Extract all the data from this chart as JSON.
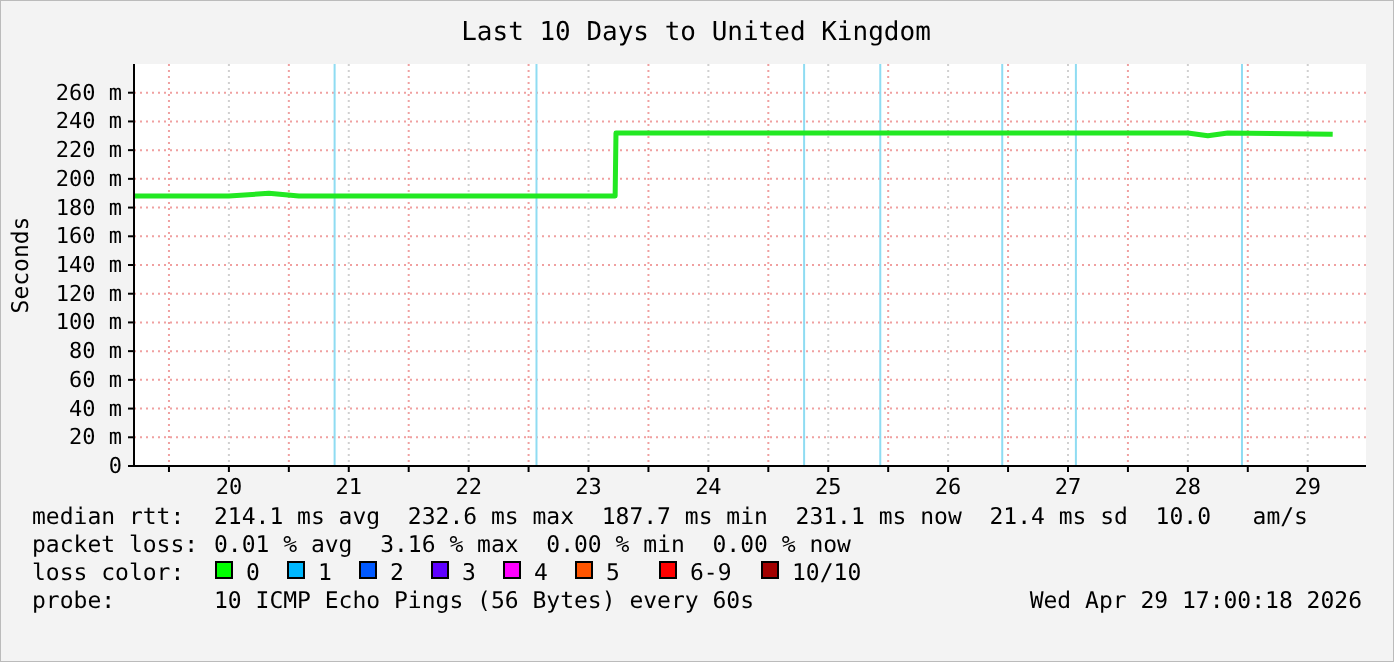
{
  "chart_data": {
    "type": "line",
    "title": "Last 10 Days to United Kingdom",
    "ylabel": "Seconds",
    "x": [
      "2026-04-19T17:00",
      "2026-04-20T12:00",
      "2026-04-20T20:00",
      "2026-04-21T02:00",
      "2026-04-21T12:00",
      "2026-04-22T12:00",
      "2026-04-23T12:00",
      "2026-04-23T17:20",
      "2026-04-23T17:30",
      "2026-04-24T12:00",
      "2026-04-25T12:00",
      "2026-04-26T12:00",
      "2026-04-27T12:00",
      "2026-04-28T12:00",
      "2026-04-28T16:00",
      "2026-04-28T20:00",
      "2026-04-29T17:00"
    ],
    "series": [
      {
        "color": "#22e822",
        "values": [
          188,
          188,
          190,
          188,
          188,
          188,
          188,
          188,
          232,
          232,
          232,
          232,
          232,
          232,
          230,
          232,
          231
        ]
      }
    ],
    "xlim": [
      "2026-04-19T17:00",
      "2026-04-29T23:40"
    ],
    "xticks": [
      {
        "value": "2026-04-20T00:00",
        "label": null
      },
      {
        "value": "2026-04-20T12:00",
        "label": "20"
      },
      {
        "value": "2026-04-21T00:00",
        "label": null
      },
      {
        "value": "2026-04-21T12:00",
        "label": "21"
      },
      {
        "value": "2026-04-22T00:00",
        "label": null
      },
      {
        "value": "2026-04-22T12:00",
        "label": "22"
      },
      {
        "value": "2026-04-23T00:00",
        "label": null
      },
      {
        "value": "2026-04-23T12:00",
        "label": "23"
      },
      {
        "value": "2026-04-24T00:00",
        "label": null
      },
      {
        "value": "2026-04-24T12:00",
        "label": "24"
      },
      {
        "value": "2026-04-25T00:00",
        "label": null
      },
      {
        "value": "2026-04-25T12:00",
        "label": "25"
      },
      {
        "value": "2026-04-26T00:00",
        "label": null
      },
      {
        "value": "2026-04-26T12:00",
        "label": "26"
      },
      {
        "value": "2026-04-27T00:00",
        "label": null
      },
      {
        "value": "2026-04-27T12:00",
        "label": "27"
      },
      {
        "value": "2026-04-28T00:00",
        "label": null
      },
      {
        "value": "2026-04-28T12:00",
        "label": "28"
      },
      {
        "value": "2026-04-29T00:00",
        "label": null
      },
      {
        "value": "2026-04-29T12:00",
        "label": "29"
      }
    ],
    "ylim": [
      0,
      280
    ],
    "yticks": [
      {
        "value": 0,
        "label": "0"
      },
      {
        "value": 20,
        "label": "20 m"
      },
      {
        "value": 40,
        "label": "40 m"
      },
      {
        "value": 60,
        "label": "60 m"
      },
      {
        "value": 80,
        "label": "80 m"
      },
      {
        "value": 100,
        "label": "100 m"
      },
      {
        "value": 120,
        "label": "120 m"
      },
      {
        "value": 140,
        "label": "140 m"
      },
      {
        "value": 160,
        "label": "160 m"
      },
      {
        "value": 180,
        "label": "180 m"
      },
      {
        "value": 200,
        "label": "200 m"
      },
      {
        "value": 220,
        "label": "220 m"
      },
      {
        "value": 240,
        "label": "240 m"
      },
      {
        "value": 260,
        "label": "260 m"
      }
    ],
    "grid": true,
    "ref_lines": [
      {
        "axis": "x",
        "value": "2026-04-21T09:10",
        "color": "#8fdcf2"
      },
      {
        "axis": "x",
        "value": "2026-04-23T01:35",
        "color": "#8fdcf2"
      },
      {
        "axis": "x",
        "value": "2026-04-25T07:10",
        "color": "#8fdcf2"
      },
      {
        "axis": "x",
        "value": "2026-04-25T22:25",
        "color": "#8fdcf2"
      },
      {
        "axis": "x",
        "value": "2026-04-26T22:50",
        "color": "#8fdcf2"
      },
      {
        "axis": "x",
        "value": "2026-04-27T13:35",
        "color": "#8fdcf2"
      },
      {
        "axis": "x",
        "value": "2026-04-28T22:50",
        "color": "#8fdcf2"
      }
    ],
    "annotations": [
      "median rtt:",
      "214.1 ms avg  232.6 ms max  187.7 ms min  231.1 ms now  21.4 ms sd  10.0   am/s",
      "packet loss:",
      "0.01 % avg  3.16 % max  0.00 % min  0.00 % now",
      "loss color:",
      "0",
      "1",
      "2",
      "3",
      "4",
      "5",
      "6-9",
      "10/10",
      "probe:",
      "10 ICMP Echo Pings (56 Bytes) every 60s",
      "Wed Apr 29 17:00:18 2026"
    ]
  }
}
